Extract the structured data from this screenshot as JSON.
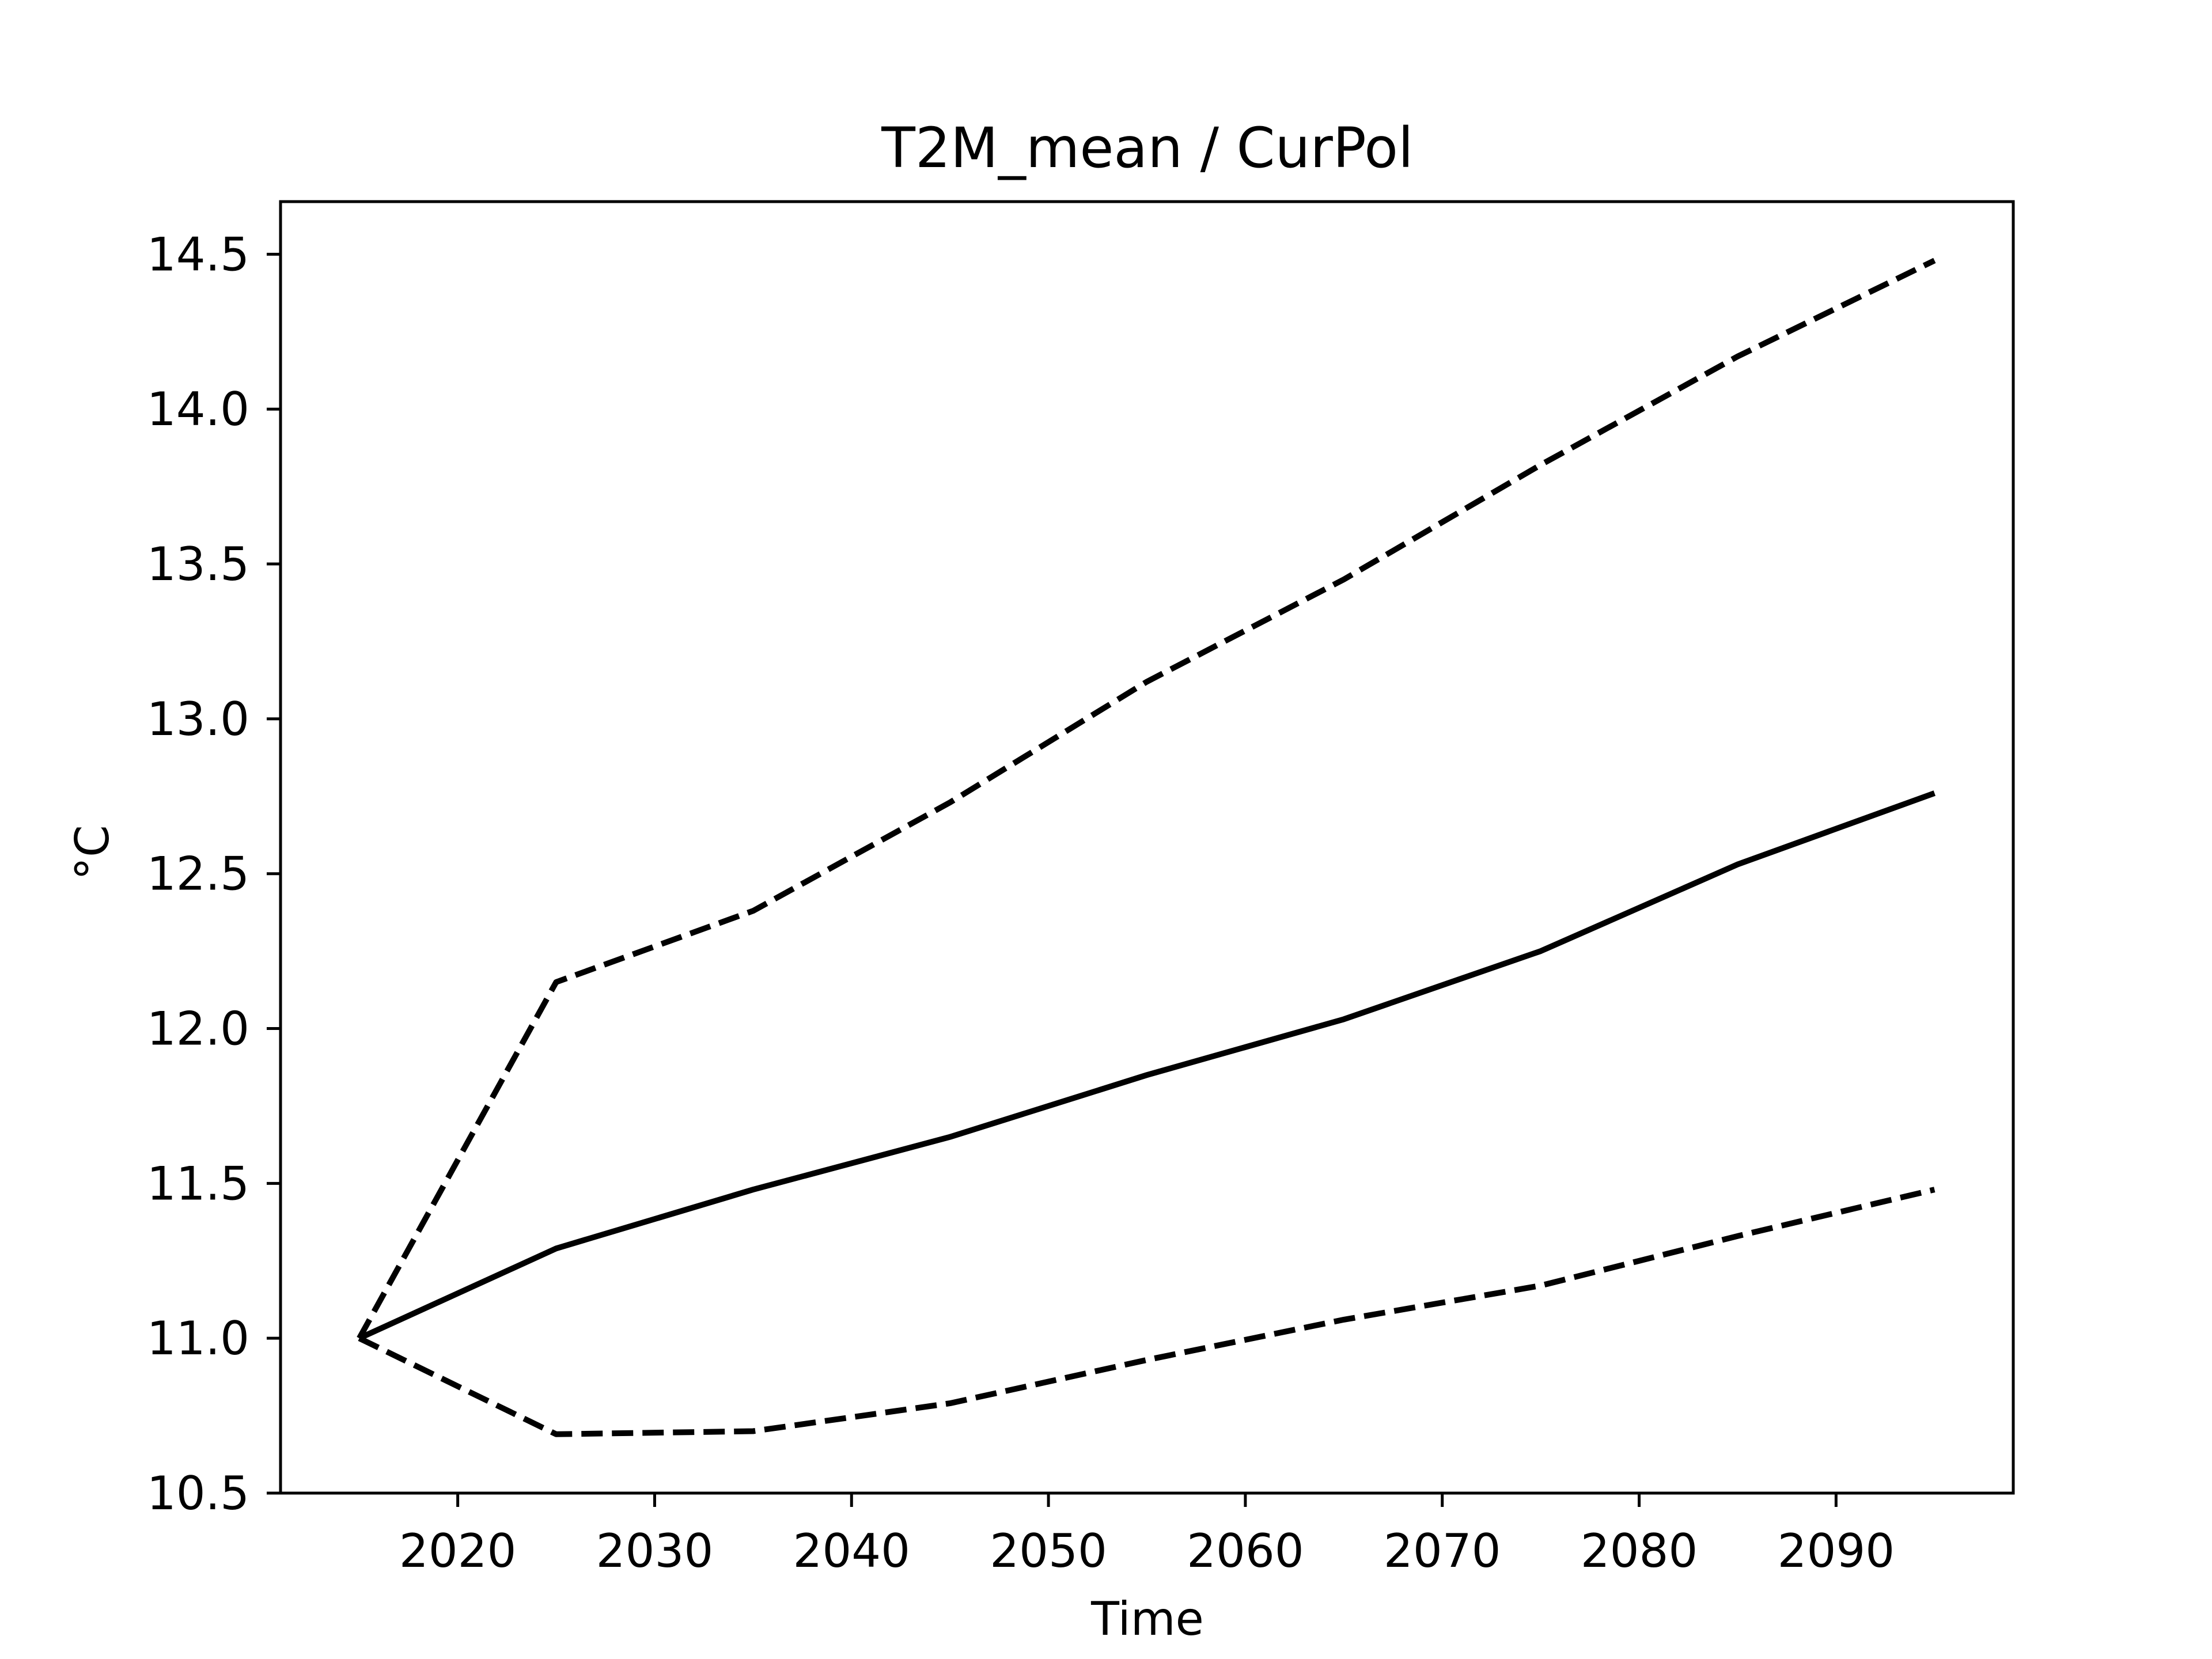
{
  "chart_data": {
    "type": "line",
    "title": "T2M_mean / CurPol",
    "xlabel": "Time",
    "ylabel": "°C",
    "xlim": [
      2011,
      2099
    ],
    "ylim": [
      10.5,
      14.67
    ],
    "xticks": [
      2020,
      2030,
      2040,
      2050,
      2060,
      2070,
      2080,
      2090
    ],
    "yticks": [
      10.5,
      11.0,
      11.5,
      12.0,
      12.5,
      13.0,
      13.5,
      14.0,
      14.5
    ],
    "ytick_labels": [
      "10.5",
      "11.0",
      "11.5",
      "12.0",
      "12.5",
      "13.0",
      "13.5",
      "14.0",
      "14.5"
    ],
    "grid": false,
    "x": [
      2015,
      2025,
      2035,
      2045,
      2055,
      2065,
      2075,
      2085,
      2095
    ],
    "series": [
      {
        "style": "solid",
        "color": "#000000",
        "values": [
          11.0,
          11.29,
          11.48,
          11.65,
          11.85,
          12.03,
          12.25,
          12.53,
          12.76
        ]
      },
      {
        "style": "dashed",
        "color": "#000000",
        "values": [
          11.0,
          12.15,
          12.38,
          12.73,
          13.12,
          13.45,
          13.82,
          14.17,
          14.48
        ]
      },
      {
        "style": "dashed",
        "color": "#000000",
        "values": [
          11.0,
          10.69,
          10.7,
          10.79,
          10.93,
          11.06,
          11.17,
          11.33,
          11.48
        ]
      }
    ]
  }
}
